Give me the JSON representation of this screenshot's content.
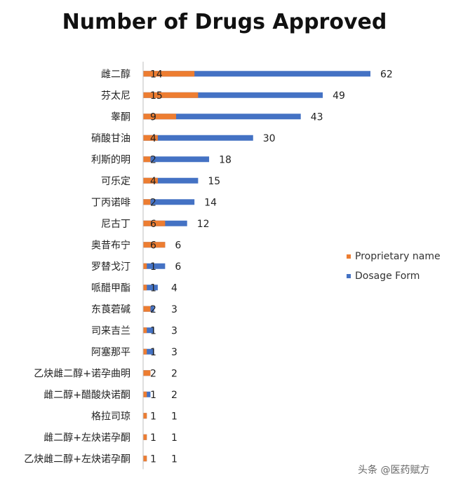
{
  "colors": {
    "proprietary": "#ED7D31",
    "dosage": "#4472C4",
    "axis": "#bfbfbf",
    "text": "#222222"
  },
  "watermark": "头条 @医药赋方",
  "chart_data": {
    "type": "bar",
    "orientation": "horizontal",
    "title": "Number of Drugs Approved",
    "xlabel": "",
    "ylabel": "",
    "xlim": [
      0,
      62
    ],
    "grid": false,
    "legend_position": "right",
    "categories": [
      "雌二醇",
      "芬太尼",
      "睾酮",
      "硝酸甘油",
      "利斯的明",
      "可乐定",
      "丁丙诺啡",
      "尼古丁",
      "奥昔布宁",
      "罗替戈汀",
      "哌醋甲酯",
      "东莨菪碱",
      "司来吉兰",
      "阿塞那平",
      "乙炔雌二醇+诺孕曲明",
      "雌二醇+醋酸炔诺酮",
      "格拉司琼",
      "雌二醇+左炔诺孕酮",
      "乙炔雌二醇+左炔诺孕酮"
    ],
    "series": [
      {
        "name": "Proprietary name",
        "values": [
          14,
          15,
          9,
          4,
          2,
          4,
          2,
          6,
          6,
          1,
          1,
          2,
          1,
          1,
          2,
          1,
          1,
          1,
          1
        ]
      },
      {
        "name": "Dosage Form",
        "values": [
          62,
          49,
          43,
          30,
          18,
          15,
          14,
          12,
          6,
          6,
          4,
          3,
          3,
          3,
          2,
          2,
          1,
          1,
          1
        ]
      }
    ]
  }
}
